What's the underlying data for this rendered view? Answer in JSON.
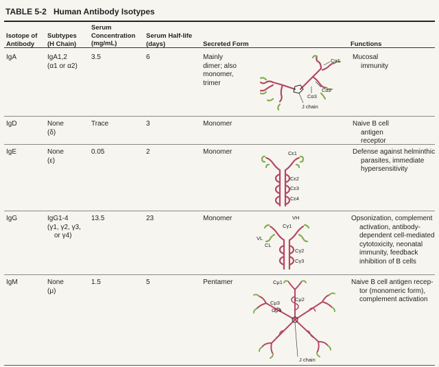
{
  "table": {
    "number": "TABLE 5-2",
    "title": "Human Antibody Isotypes"
  },
  "headers": {
    "isotype": [
      "Isotope of",
      "Antibody"
    ],
    "subtypes": [
      "Subtypes",
      "(H Chain)"
    ],
    "concentration": [
      "Serum",
      "Concentration",
      "(mg/mL)"
    ],
    "halflife": [
      "Serum Half-life",
      "(days)"
    ],
    "form": [
      "Secreted Form"
    ],
    "functions": [
      "Functions"
    ]
  },
  "rows": [
    {
      "isotype": "IgA",
      "subtypes": [
        "IgA1,2",
        "(α1 or α2)"
      ],
      "concentration": "3.5",
      "halflife": "6",
      "form": [
        "Mainly",
        "dimer; also",
        "monomer,",
        "trimer"
      ],
      "functions": [
        "Mucosal",
        "immunity"
      ],
      "labels": [
        "Cα1",
        "Cα2",
        "Cα3",
        "J chain"
      ]
    },
    {
      "isotype": "IgD",
      "subtypes": [
        "None",
        "(δ)"
      ],
      "concentration": "Trace",
      "halflife": "3",
      "form": [
        "Monomer"
      ],
      "functions": [
        "Naive B cell",
        "antigen",
        "receptor"
      ]
    },
    {
      "isotype": "IgE",
      "subtypes": [
        "None",
        "(ε)"
      ],
      "concentration": "0.05",
      "halflife": "2",
      "form": [
        "Monomer"
      ],
      "functions": [
        "Defense against helminthic",
        "parasites, immediate",
        "hypersensitivity"
      ],
      "labels": [
        "Cε1",
        "Cε2",
        "Cε3",
        "Cε4"
      ]
    },
    {
      "isotype": "IgG",
      "subtypes": [
        "IgG1-4",
        "(γ1, γ2, γ3,",
        "or γ4)"
      ],
      "concentration": "13.5",
      "halflife": "23",
      "form": [
        "Monomer"
      ],
      "functions": [
        "Opsonization, complement",
        "activation, antibody-",
        "dependent cell-mediated",
        "cytotoxicity, neonatal",
        "immunity, feedback",
        "inhibition of B cells"
      ],
      "labels": [
        "VH",
        "Cγ1",
        "VL",
        "CL",
        "Cγ2",
        "Cγ3"
      ]
    },
    {
      "isotype": "IgM",
      "subtypes": [
        "None",
        "(μ)"
      ],
      "concentration": "1.5",
      "halflife": "5",
      "form": [
        "Pentamer"
      ],
      "functions": [
        "Naive B cell antigen recep-",
        "tor (monomeric form),",
        "complement activation"
      ],
      "labels": [
        "Cμ1",
        "Cμ2",
        "Cμ3",
        "Cμ4",
        "J chain"
      ]
    }
  ],
  "colors": {
    "heavy_chain": "#b3485f",
    "light_chain": "#7fae4e",
    "rule": "#333333"
  }
}
